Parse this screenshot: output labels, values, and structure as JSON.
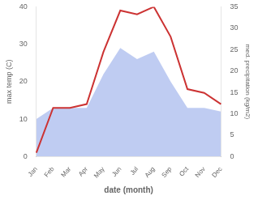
{
  "chart_data": {
    "type": "line",
    "categories": [
      "Jan",
      "Feb",
      "Mar",
      "Apr",
      "May",
      "Jun",
      "Jul",
      "Aug",
      "Sep",
      "Oct",
      "Nov",
      "Dec"
    ],
    "series": [
      {
        "type": "area",
        "color": "#aabbee",
        "values": [
          10,
          13,
          13,
          13,
          22,
          29,
          26,
          28,
          20,
          13,
          13,
          12
        ]
      },
      {
        "type": "line",
        "color": "#cc3333",
        "values": [
          1,
          13,
          13,
          14,
          28,
          39,
          38,
          40,
          32,
          18,
          17,
          14
        ]
      }
    ],
    "xlabel": "date (month)",
    "ylabel": "max temp (C)",
    "y2label": "med. precipitation (kg/m2)",
    "ylim": [
      0,
      40
    ],
    "yticks": [
      0,
      10,
      20,
      30,
      40
    ],
    "y2lim": [
      0,
      35
    ],
    "y2ticks": [
      0,
      5,
      10,
      15,
      20,
      25,
      30,
      35
    ],
    "grid": false
  }
}
